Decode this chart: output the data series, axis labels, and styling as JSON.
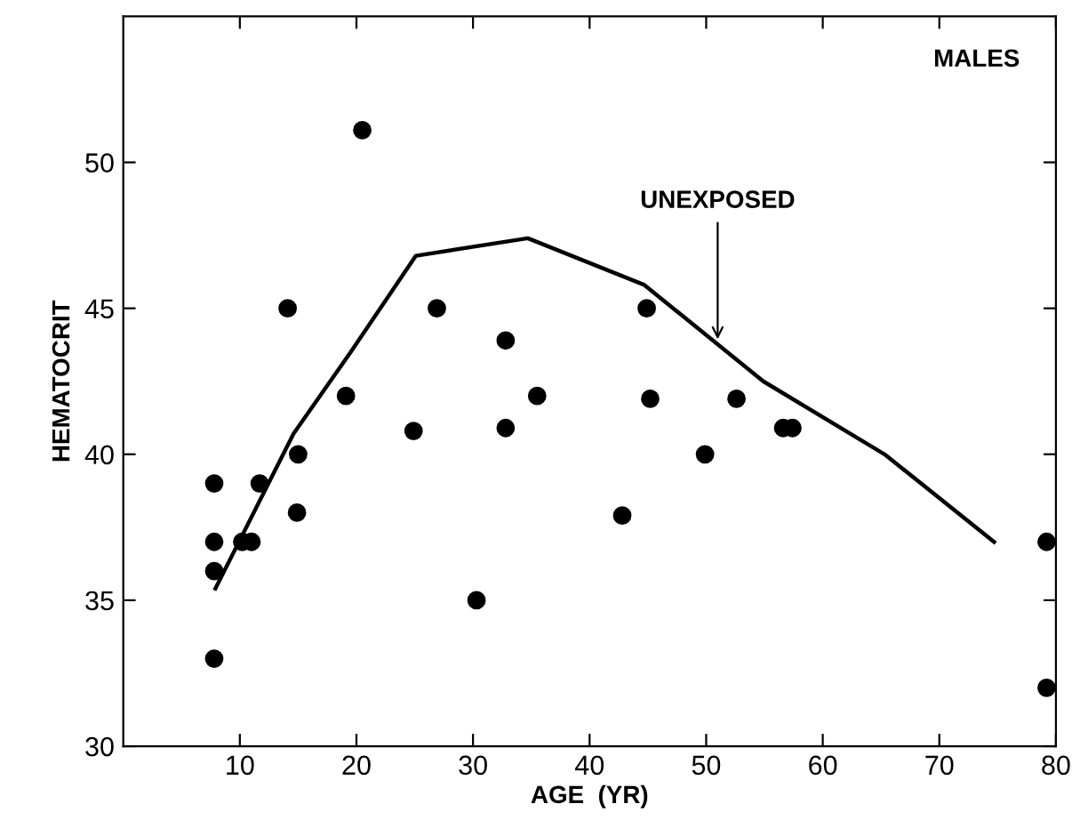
{
  "chart_data": {
    "type": "scatter",
    "xlabel": "AGE  (YR)",
    "ylabel": "HEMATOCRIT",
    "xlim": [
      0,
      80
    ],
    "ylim": [
      30,
      55
    ],
    "xticks": [
      10,
      20,
      30,
      40,
      50,
      60,
      70,
      80
    ],
    "yticks": [
      30,
      35,
      40,
      45,
      50
    ],
    "grid": false,
    "legend": false,
    "marker": "circle",
    "annotations": [
      "MALES"
    ],
    "series": [
      {
        "color": "#000000",
        "x": [
          7.8,
          7.8,
          7.8,
          7.8,
          10.2,
          11.0,
          11.7,
          14.1,
          15.0,
          14.9,
          19.1,
          20.5,
          24.9,
          26.9,
          30.3,
          32.8,
          32.8,
          35.5,
          42.8,
          44.9,
          45.2,
          49.9,
          52.6,
          56.6,
          57.4,
          79.2,
          79.2
        ],
        "values": [
          39,
          37,
          36,
          33,
          37,
          37,
          39,
          45,
          40,
          38,
          42,
          51.1,
          40.8,
          45,
          35,
          43.9,
          40.9,
          42,
          37.9,
          45,
          41.9,
          40,
          41.9,
          40.9,
          40.9,
          37,
          32
        ]
      },
      {
        "type": "line",
        "name": "UNEXPOSED",
        "color": "#000000",
        "line_style": "solid",
        "marker": "none",
        "x": [
          7.9,
          14.6,
          19.5,
          25.1,
          34.7,
          44.7,
          54.9,
          65.3,
          74.7
        ],
        "values": [
          35.4,
          40.7,
          43.5,
          46.8,
          47.4,
          45.8,
          42.5,
          40.0,
          37.0
        ]
      }
    ]
  }
}
